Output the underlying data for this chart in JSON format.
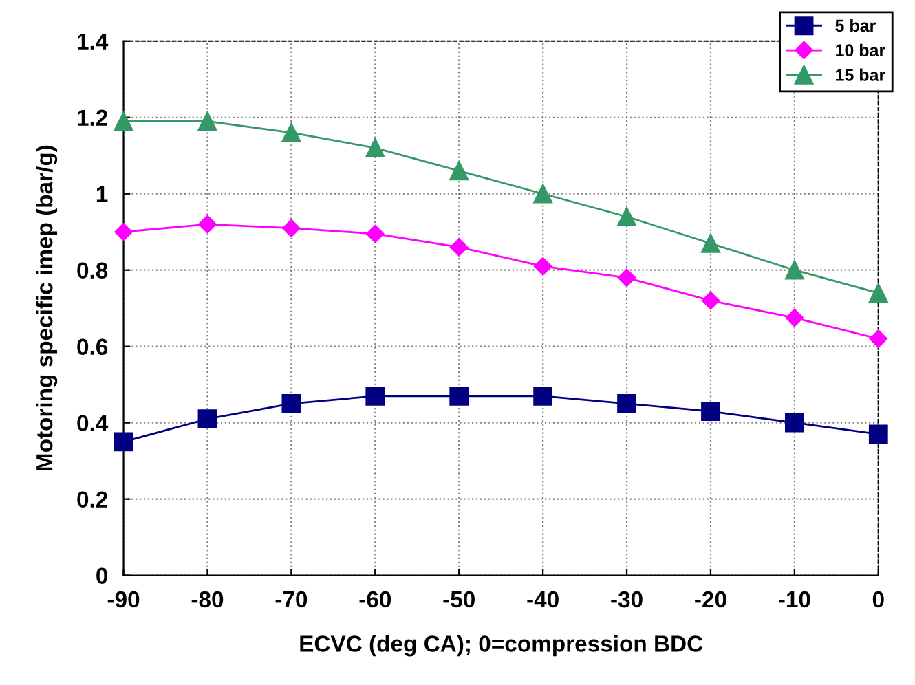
{
  "chart_data": {
    "type": "line",
    "xlabel": "ECVC (deg CA); 0=compression BDC",
    "ylabel": "Motoring specific imep (bar/g)",
    "x": [
      -90,
      -80,
      -70,
      -60,
      -50,
      -40,
      -30,
      -20,
      -10,
      0
    ],
    "series": [
      {
        "name": "5 bar",
        "color": "#000080",
        "marker": "square",
        "values": [
          0.35,
          0.41,
          0.45,
          0.47,
          0.47,
          0.47,
          0.45,
          0.43,
          0.4,
          0.37
        ]
      },
      {
        "name": "10 bar",
        "color": "#ff00ff",
        "marker": "diamond",
        "values": [
          0.9,
          0.92,
          0.91,
          0.895,
          0.86,
          0.81,
          0.78,
          0.72,
          0.675,
          0.62
        ]
      },
      {
        "name": "15 bar",
        "color": "#339966",
        "marker": "triangle",
        "values": [
          1.19,
          1.19,
          1.16,
          1.12,
          1.06,
          1.0,
          0.94,
          0.87,
          0.8,
          0.74
        ]
      }
    ],
    "xlim": [
      -90,
      0
    ],
    "xticks": [
      -90,
      -80,
      -70,
      -60,
      -50,
      -40,
      -30,
      -20,
      -10,
      0
    ],
    "ylim": [
      0,
      1.4
    ],
    "yticks": [
      0,
      0.2,
      0.4,
      0.6,
      0.8,
      1,
      1.2,
      1.4
    ],
    "grid": true,
    "legend": "top right",
    "line_style": "solid"
  }
}
